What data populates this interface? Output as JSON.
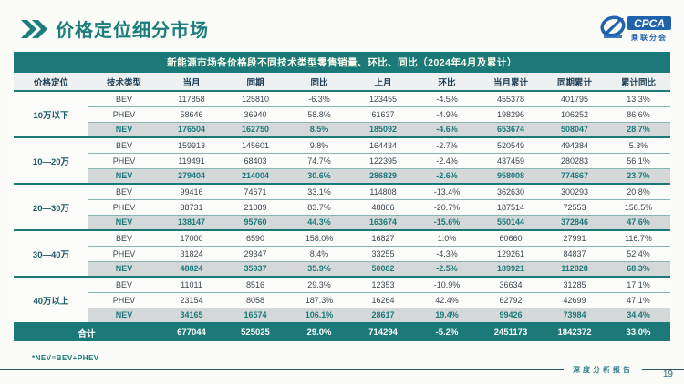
{
  "page": {
    "title": "价格定位细分市场",
    "footnote": "*NEV=BEV+PHEV",
    "footer_brand": "深度分析报告",
    "page_number": "19"
  },
  "logo": {
    "acronym": "CPCA",
    "org": "乘联分会"
  },
  "colors": {
    "accent_teal": "#1b7a78",
    "header_row_bg": "#edf1f2",
    "nev_row_bg": "#d4d8d8",
    "nev_text": "#1b7a78",
    "total_row_bg": "#1b7a78",
    "logo_blue": "#1f63ad"
  },
  "table": {
    "title": "新能源市场各价格段不同技术类型零售销量、环比、同比（2024年4月及累计）",
    "columns": [
      "价格定位",
      "技术类型",
      "当月",
      "同期",
      "同比",
      "上月",
      "环比",
      "当月累计",
      "同期累计",
      "累计同比"
    ],
    "groups": [
      {
        "label": "10万以下",
        "rows": [
          {
            "tech": "BEV",
            "values": [
              "117858",
              "125810",
              "-6.3%",
              "123455",
              "-4.5%",
              "455378",
              "401795",
              "13.3%"
            ]
          },
          {
            "tech": "PHEV",
            "values": [
              "58646",
              "36940",
              "58.8%",
              "61637",
              "-4.9%",
              "198296",
              "106252",
              "86.6%"
            ]
          },
          {
            "tech": "NEV",
            "values": [
              "176504",
              "162750",
              "8.5%",
              "185092",
              "-4.6%",
              "653674",
              "508047",
              "28.7%"
            ]
          }
        ]
      },
      {
        "label": "10—20万",
        "rows": [
          {
            "tech": "BEV",
            "values": [
              "159913",
              "145601",
              "9.8%",
              "164434",
              "-2.7%",
              "520549",
              "494384",
              "5.3%"
            ]
          },
          {
            "tech": "PHEV",
            "values": [
              "119491",
              "68403",
              "74.7%",
              "122395",
              "-2.4%",
              "437459",
              "280283",
              "56.1%"
            ]
          },
          {
            "tech": "NEV",
            "values": [
              "279404",
              "214004",
              "30.6%",
              "286829",
              "-2.6%",
              "958008",
              "774667",
              "23.7%"
            ]
          }
        ]
      },
      {
        "label": "20—30万",
        "rows": [
          {
            "tech": "BEV",
            "values": [
              "99416",
              "74671",
              "33.1%",
              "114808",
              "-13.4%",
              "362630",
              "300293",
              "20.8%"
            ]
          },
          {
            "tech": "PHEV",
            "values": [
              "38731",
              "21089",
              "83.7%",
              "48866",
              "-20.7%",
              "187514",
              "72553",
              "158.5%"
            ]
          },
          {
            "tech": "NEV",
            "values": [
              "138147",
              "95760",
              "44.3%",
              "163674",
              "-15.6%",
              "550144",
              "372846",
              "47.6%"
            ]
          }
        ]
      },
      {
        "label": "30—40万",
        "rows": [
          {
            "tech": "BEV",
            "values": [
              "17000",
              "6590",
              "158.0%",
              "16827",
              "1.0%",
              "60660",
              "27991",
              "116.7%"
            ]
          },
          {
            "tech": "PHEV",
            "values": [
              "31824",
              "29347",
              "8.4%",
              "33255",
              "-4.3%",
              "129261",
              "84837",
              "52.4%"
            ]
          },
          {
            "tech": "NEV",
            "values": [
              "48824",
              "35937",
              "35.9%",
              "50082",
              "-2.5%",
              "189921",
              "112828",
              "68.3%"
            ]
          }
        ]
      },
      {
        "label": "40万以上",
        "rows": [
          {
            "tech": "BEV",
            "values": [
              "11011",
              "8516",
              "29.3%",
              "12353",
              "-10.9%",
              "36634",
              "31285",
              "17.1%"
            ]
          },
          {
            "tech": "PHEV",
            "values": [
              "23154",
              "8058",
              "187.3%",
              "16264",
              "42.4%",
              "62792",
              "42699",
              "47.1%"
            ]
          },
          {
            "tech": "NEV",
            "values": [
              "34165",
              "16574",
              "106.1%",
              "28617",
              "19.4%",
              "99426",
              "73984",
              "34.4%"
            ]
          }
        ]
      }
    ],
    "total": {
      "label": "合计",
      "values": [
        "677044",
        "525025",
        "29.0%",
        "714294",
        "-5.2%",
        "2451173",
        "1842372",
        "33.0%"
      ]
    }
  }
}
